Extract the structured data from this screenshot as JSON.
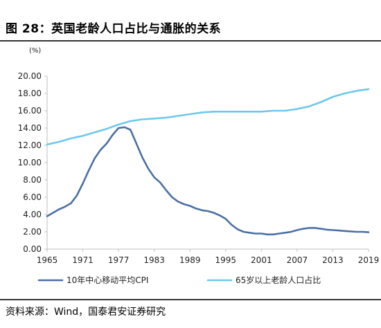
{
  "title": "图 28：英国老龄人口占比与通胀的关系",
  "source": "资料来源：Wind，国泰君安证券研究",
  "colors": {
    "cpi": "#4a6fa5",
    "aging": "#6cc8ec",
    "axis": "#bfbfbf",
    "rule": "#333333"
  },
  "chart_data": {
    "type": "line",
    "title": "",
    "ylabel": "(%)",
    "xlabel": "",
    "xlim": [
      1965,
      2019
    ],
    "ylim": [
      0,
      20
    ],
    "x_ticks": [
      "1965",
      "1971",
      "1977",
      "1983",
      "1989",
      "1995",
      "2001",
      "2007",
      "2013",
      "2019"
    ],
    "y_ticks": [
      "0.00",
      "2.00",
      "4.00",
      "6.00",
      "8.00",
      "10.00",
      "12.00",
      "14.00",
      "16.00",
      "18.00",
      "20.00"
    ],
    "legend_position": "bottom",
    "series": [
      {
        "name": "10年中心移动平均CPI",
        "color": "#4a6fa5",
        "x": [
          1965,
          1966,
          1967,
          1968,
          1969,
          1970,
          1971,
          1972,
          1973,
          1974,
          1975,
          1976,
          1977,
          1978,
          1979,
          1980,
          1981,
          1982,
          1983,
          1984,
          1985,
          1986,
          1987,
          1988,
          1989,
          1990,
          1991,
          1992,
          1993,
          1994,
          1995,
          1996,
          1997,
          1998,
          1999,
          2000,
          2001,
          2002,
          2003,
          2004,
          2005,
          2006,
          2007,
          2008,
          2009,
          2010,
          2011,
          2012,
          2013,
          2014,
          2015,
          2016,
          2017,
          2018,
          2019
        ],
        "y": [
          3.8,
          4.2,
          4.6,
          4.9,
          5.3,
          6.2,
          7.6,
          9.1,
          10.5,
          11.5,
          12.2,
          13.2,
          14.0,
          14.1,
          13.8,
          12.2,
          10.6,
          9.3,
          8.3,
          7.7,
          6.8,
          6.0,
          5.5,
          5.2,
          5.0,
          4.7,
          4.5,
          4.4,
          4.2,
          3.9,
          3.5,
          2.8,
          2.3,
          2.0,
          1.9,
          1.8,
          1.8,
          1.7,
          1.7,
          1.8,
          1.9,
          2.0,
          2.2,
          2.35,
          2.45,
          2.45,
          2.35,
          2.25,
          2.2,
          2.15,
          2.1,
          2.05,
          2.0,
          2.0,
          1.95
        ]
      },
      {
        "name": "65岁以上老龄人口占比",
        "color": "#6cc8ec",
        "x": [
          1965,
          1967,
          1969,
          1971,
          1973,
          1975,
          1977,
          1979,
          1981,
          1983,
          1985,
          1987,
          1989,
          1991,
          1993,
          1995,
          1997,
          1999,
          2001,
          2003,
          2005,
          2007,
          2009,
          2011,
          2013,
          2015,
          2017,
          2019
        ],
        "y": [
          12.1,
          12.4,
          12.8,
          13.1,
          13.5,
          13.9,
          14.4,
          14.8,
          15.0,
          15.1,
          15.2,
          15.4,
          15.6,
          15.8,
          15.9,
          15.9,
          15.9,
          15.9,
          15.9,
          16.0,
          16.0,
          16.2,
          16.5,
          17.0,
          17.6,
          18.0,
          18.3,
          18.5
        ]
      }
    ]
  }
}
